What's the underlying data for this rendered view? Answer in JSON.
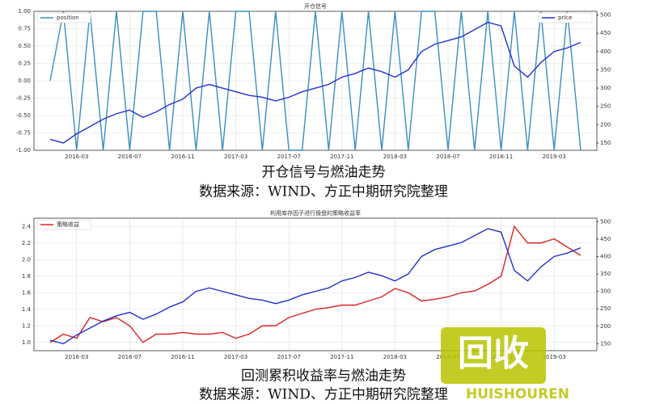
{
  "chart_data": [
    {
      "type": "line",
      "title": "开仓信号",
      "caption": "开仓信号与燃油走势",
      "source": "数据来源：WIND、方正中期研究院整理",
      "x": [
        "2016-01",
        "2016-02",
        "2016-03",
        "2016-04",
        "2016-05",
        "2016-06",
        "2016-07",
        "2016-08",
        "2016-09",
        "2016-10",
        "2016-11",
        "2016-12",
        "2017-01",
        "2017-02",
        "2017-03",
        "2017-04",
        "2017-05",
        "2017-06",
        "2017-07",
        "2017-08",
        "2017-09",
        "2017-10",
        "2017-11",
        "2017-12",
        "2018-01",
        "2018-02",
        "2018-03",
        "2018-04",
        "2018-05",
        "2018-06",
        "2018-07",
        "2018-08",
        "2018-09",
        "2018-10",
        "2018-11",
        "2018-12",
        "2019-01",
        "2019-02",
        "2019-03",
        "2019-04",
        "2019-05"
      ],
      "xticks": [
        "2016-03",
        "2016-07",
        "2016-11",
        "2017-03",
        "2017-07",
        "2017-11",
        "2018-03",
        "2018-07",
        "2018-11",
        "2019-03"
      ],
      "series": [
        {
          "name": "position",
          "color": "#3a8fbf",
          "values": [
            0,
            1,
            -1,
            1,
            -1,
            1,
            -1,
            1,
            1,
            -1,
            1,
            -1,
            1,
            -1,
            1,
            1,
            -1,
            1,
            -1,
            -1,
            1,
            -1,
            1,
            -1,
            1,
            -1,
            1,
            -1,
            1,
            1,
            -1,
            1,
            -1,
            1,
            -1,
            1,
            -1,
            1,
            -1,
            1,
            -1
          ]
        },
        {
          "name": "price",
          "color": "#2233cc",
          "axis": "y2",
          "values": [
            160,
            150,
            175,
            195,
            215,
            230,
            240,
            220,
            235,
            255,
            270,
            300,
            310,
            300,
            290,
            280,
            275,
            265,
            275,
            290,
            300,
            310,
            330,
            340,
            355,
            345,
            330,
            350,
            400,
            420,
            430,
            440,
            460,
            480,
            470,
            360,
            330,
            370,
            400,
            410,
            425
          ]
        }
      ],
      "ylim": [
        -1.0,
        1.0
      ],
      "yticks": [
        {
          "value": -1.0,
          "label": "-1.00"
        },
        {
          "value": -0.75,
          "label": "-0.75"
        },
        {
          "value": -0.5,
          "label": "-0.50"
        },
        {
          "value": -0.25,
          "label": "-0.25"
        },
        {
          "value": 0,
          "label": "0.00"
        },
        {
          "value": 0.25,
          "label": "0.25"
        },
        {
          "value": 0.5,
          "label": "0.50"
        },
        {
          "value": 0.75,
          "label": "0.75"
        },
        {
          "value": 1.0,
          "label": "1.00"
        }
      ],
      "y2lim": [
        130,
        510
      ],
      "y2ticks": [
        150,
        200,
        250,
        300,
        350,
        400,
        450,
        500
      ],
      "grid": true
    },
    {
      "type": "line",
      "title": "利用库存因子进行操盘的策略收益率",
      "caption": "回测累积收益率与燃油走势",
      "source": "数据来源：WIND、方正中期研究院整理",
      "x": [
        "2016-01",
        "2016-02",
        "2016-03",
        "2016-04",
        "2016-05",
        "2016-06",
        "2016-07",
        "2016-08",
        "2016-09",
        "2016-10",
        "2016-11",
        "2016-12",
        "2017-01",
        "2017-02",
        "2017-03",
        "2017-04",
        "2017-05",
        "2017-06",
        "2017-07",
        "2017-08",
        "2017-09",
        "2017-10",
        "2017-11",
        "2017-12",
        "2018-01",
        "2018-02",
        "2018-03",
        "2018-04",
        "2018-05",
        "2018-06",
        "2018-07",
        "2018-08",
        "2018-09",
        "2018-10",
        "2018-11",
        "2018-12",
        "2019-01",
        "2019-02",
        "2019-03",
        "2019-04",
        "2019-05"
      ],
      "xticks": [
        "2016-03",
        "2016-07",
        "2016-11",
        "2017-03",
        "2017-07",
        "2017-11",
        "2018-03",
        "2018-07",
        "2018-11",
        "2019-03"
      ],
      "series": [
        {
          "name": "策略收益",
          "color": "#dd2222",
          "values": [
            1.0,
            1.1,
            1.05,
            1.3,
            1.25,
            1.3,
            1.2,
            1.0,
            1.1,
            1.1,
            1.12,
            1.1,
            1.1,
            1.12,
            1.05,
            1.1,
            1.2,
            1.2,
            1.3,
            1.35,
            1.4,
            1.42,
            1.45,
            1.45,
            1.5,
            1.55,
            1.65,
            1.6,
            1.5,
            1.52,
            1.55,
            1.6,
            1.62,
            1.7,
            1.8,
            2.4,
            2.2,
            2.2,
            2.25,
            2.15,
            2.05
          ]
        },
        {
          "color": "#2233cc",
          "axis": "y2",
          "values": [
            160,
            150,
            175,
            195,
            215,
            230,
            240,
            220,
            235,
            255,
            270,
            300,
            310,
            300,
            290,
            280,
            275,
            265,
            275,
            290,
            300,
            310,
            330,
            340,
            355,
            345,
            330,
            350,
            400,
            420,
            430,
            440,
            460,
            480,
            470,
            360,
            330,
            370,
            400,
            410,
            425
          ]
        }
      ],
      "ylim": [
        0.9,
        2.5
      ],
      "yticks": [
        {
          "value": 1.0,
          "label": "1.0"
        },
        {
          "value": 1.2,
          "label": "1.2"
        },
        {
          "value": 1.4,
          "label": "1.4"
        },
        {
          "value": 1.6,
          "label": "1.6"
        },
        {
          "value": 1.8,
          "label": "1.8"
        },
        {
          "value": 2.0,
          "label": "2.0"
        },
        {
          "value": 2.2,
          "label": "2.2"
        },
        {
          "value": 2.4,
          "label": "2.4"
        }
      ],
      "y2lim": [
        130,
        510
      ],
      "y2ticks": [
        150,
        200,
        250,
        300,
        350,
        400,
        450,
        500
      ],
      "grid": true
    }
  ],
  "watermark": {
    "logo": "回收",
    "brand": "HUISHOUREN"
  }
}
